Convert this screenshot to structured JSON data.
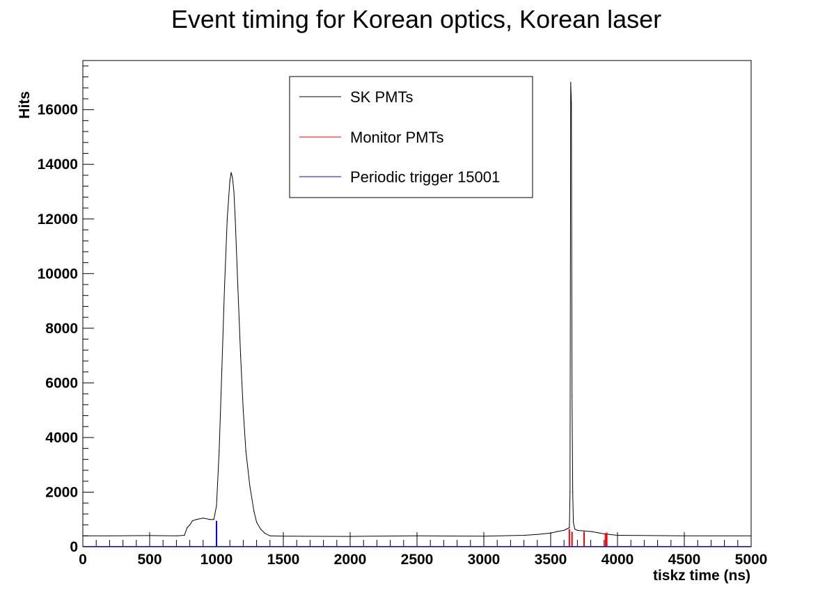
{
  "chart_data": {
    "type": "line",
    "title": "Event timing for Korean optics, Korean laser",
    "xlabel": "tiskz time (ns)",
    "ylabel": "Hits",
    "xlim": [
      0,
      5000
    ],
    "ylim": [
      0,
      17800
    ],
    "x_ticks": [
      0,
      500,
      1000,
      1500,
      2000,
      2500,
      3000,
      3500,
      4000,
      4500,
      5000
    ],
    "y_ticks": [
      0,
      2000,
      4000,
      6000,
      8000,
      10000,
      12000,
      14000,
      16000
    ],
    "x_tick_labels": [
      "0",
      "500",
      "1000",
      "1500",
      "2000",
      "2500",
      "3000",
      "3500",
      "4000",
      "4500",
      "5000"
    ],
    "y_tick_labels": [
      "0",
      "2000",
      "4000",
      "6000",
      "8000",
      "10000",
      "12000",
      "14000",
      "16000"
    ],
    "legend_position": "top-center",
    "grid": false,
    "series": [
      {
        "name": "SK PMTs",
        "color": "#000000",
        "x": [
          0,
          200,
          500,
          700,
          760,
          780,
          800,
          820,
          850,
          900,
          950,
          980,
          1000,
          1020,
          1040,
          1060,
          1080,
          1100,
          1110,
          1120,
          1130,
          1140,
          1160,
          1180,
          1200,
          1220,
          1250,
          1280,
          1300,
          1330,
          1360,
          1400,
          1500,
          2000,
          2500,
          3000,
          3300,
          3400,
          3500,
          3550,
          3600,
          3620,
          3640,
          3645,
          3650,
          3655,
          3660,
          3665,
          3670,
          3680,
          3700,
          3750,
          3800,
          3850,
          3900,
          4000,
          4500,
          5000
        ],
        "y": [
          400,
          400,
          410,
          400,
          420,
          700,
          800,
          950,
          1000,
          1050,
          1000,
          1000,
          1500,
          3500,
          6500,
          9500,
          12000,
          13400,
          13700,
          13500,
          13000,
          12000,
          9500,
          7000,
          5000,
          3500,
          2200,
          1300,
          900,
          650,
          500,
          400,
          390,
          380,
          400,
          390,
          420,
          450,
          500,
          560,
          600,
          650,
          700,
          2000,
          17000,
          16200,
          5500,
          2000,
          900,
          650,
          600,
          580,
          560,
          520,
          470,
          420,
          400,
          400
        ]
      },
      {
        "name": "Monitor PMTs",
        "color": "#ff0000",
        "x": [
          3640,
          3660,
          3750,
          3910,
          3920
        ],
        "y": [
          650,
          550,
          550,
          500,
          520
        ]
      },
      {
        "name": "Periodic trigger 15001",
        "color": "#0000ff",
        "x": [
          1000
        ],
        "y": [
          950
        ]
      }
    ]
  }
}
